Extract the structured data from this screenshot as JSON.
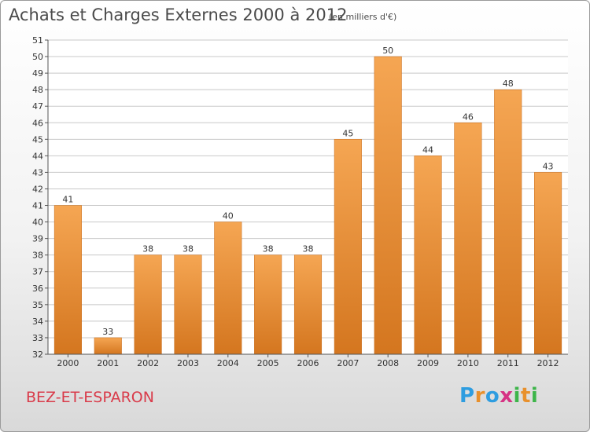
{
  "title": "Achats et Charges Externes 2000 à 2012",
  "subtitle": "(en milliers d'€)",
  "commune": "BEZ-ET-ESPARON",
  "logo": {
    "letters": [
      "P",
      "r",
      "o",
      "x",
      "i",
      "t",
      "i"
    ],
    "colors": [
      "#2e9de0",
      "#e8902c",
      "#2e9de0",
      "#d63384",
      "#3db54a",
      "#e8902c",
      "#3db54a"
    ]
  },
  "colors": {
    "bar_top": "#f5a653",
    "bar_bottom": "#d4761f",
    "axis": "#555555",
    "grid": "#c8c8c8"
  },
  "chart_data": {
    "type": "bar",
    "categories": [
      "2000",
      "2001",
      "2002",
      "2003",
      "2004",
      "2005",
      "2006",
      "2007",
      "2008",
      "2009",
      "2010",
      "2011",
      "2012"
    ],
    "values": [
      41,
      33,
      38,
      38,
      40,
      38,
      38,
      45,
      50,
      44,
      46,
      48,
      43
    ],
    "data_labels": [
      "41",
      "33",
      "38",
      "38",
      "40",
      "38",
      "38",
      "45",
      "50",
      "44",
      "46",
      "48",
      "43"
    ],
    "ylim": [
      32,
      51
    ],
    "yticks": [
      32,
      33,
      34,
      35,
      36,
      37,
      38,
      39,
      40,
      41,
      42,
      43,
      44,
      45,
      46,
      47,
      48,
      49,
      50,
      51
    ],
    "grid": true,
    "xlabel": "",
    "ylabel": ""
  }
}
